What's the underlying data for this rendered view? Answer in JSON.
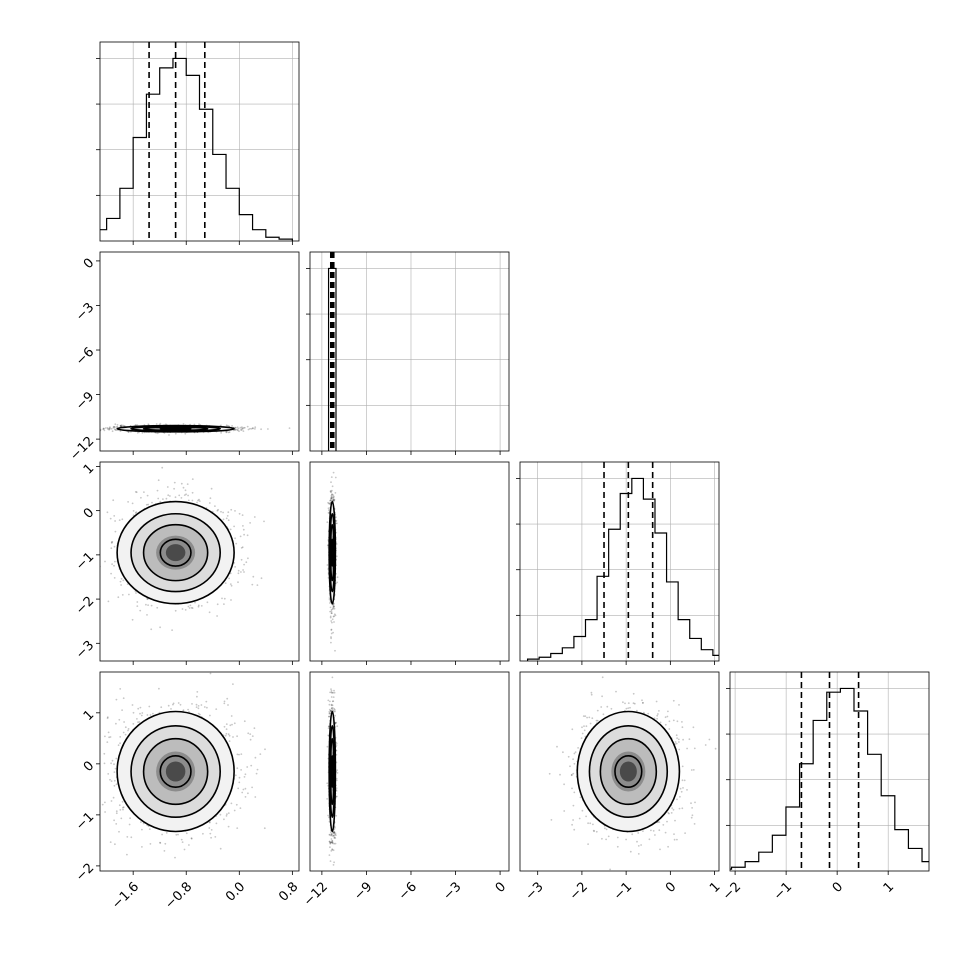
{
  "chart_data": {
    "type": "corner",
    "title": "",
    "parameters": [
      {
        "label": "",
        "range": [
          -2.1,
          0.9
        ],
        "median": -0.96,
        "q16": -1.36,
        "q84": -0.52,
        "ticks": [
          -1.6,
          -0.8,
          0.0,
          0.8
        ],
        "tick_labels": [
          "−1.6",
          "−0.8",
          "0.0",
          "0.8"
        ],
        "hist_counts": [
          1,
          3,
          6,
          12,
          28,
          55,
          78,
          92,
          97,
          88,
          70,
          46,
          28,
          14,
          6,
          2,
          1
        ]
      },
      {
        "label": "",
        "range": [
          -12.8,
          0.6
        ],
        "median": -11.3,
        "q16": -11.4,
        "q84": -11.2,
        "ticks": [
          -12,
          -9,
          -6,
          -3,
          0
        ],
        "tick_labels": [
          "−12",
          "−9",
          "−6",
          "−3",
          "0"
        ],
        "hist_counts": [
          100
        ]
      },
      {
        "label": "",
        "range": [
          -3.4,
          1.1
        ],
        "median": -0.95,
        "q16": -1.5,
        "q84": -0.4,
        "ticks": [
          -3,
          -2,
          -1,
          0,
          1
        ],
        "tick_labels": [
          "−3",
          "−2",
          "−1",
          "0",
          "1"
        ],
        "hist_counts": [
          1,
          2,
          4,
          7,
          13,
          22,
          45,
          70,
          89,
          97,
          86,
          68,
          42,
          22,
          12,
          6,
          3,
          1
        ]
      },
      {
        "label": "",
        "range": [
          -2.1,
          1.8
        ],
        "median": -0.15,
        "q16": -0.7,
        "q84": 0.42,
        "ticks": [
          -2,
          -1,
          0,
          1
        ],
        "tick_labels": [
          "−2",
          "−1",
          "0",
          "1"
        ],
        "hist_counts": [
          1,
          2,
          5,
          10,
          19,
          34,
          57,
          80,
          95,
          97,
          85,
          62,
          40,
          22,
          12,
          5,
          2
        ]
      }
    ],
    "y_axis_overrides": {
      "1": {
        "range": [
          -12.8,
          0.6
        ],
        "ticks": [
          0,
          -3,
          -6,
          -9,
          -12
        ],
        "tick_labels": [
          "0",
          "−3",
          "−6",
          "−9",
          "−12"
        ]
      },
      "2": {
        "range": [
          -3.4,
          1.1
        ],
        "ticks": [
          1,
          0,
          -1,
          -2,
          -3
        ],
        "tick_labels": [
          "1",
          "0",
          "−1",
          "−2",
          "−3"
        ]
      },
      "3": {
        "range": [
          -2.1,
          1.8
        ],
        "ticks": [
          1,
          0,
          -1,
          -2
        ],
        "tick_labels": [
          "1",
          "0",
          "−1",
          "−2"
        ]
      }
    },
    "quantile_lines": "dashed at 16th, 50th, 84th percentiles",
    "grid": true,
    "legend": "none"
  }
}
